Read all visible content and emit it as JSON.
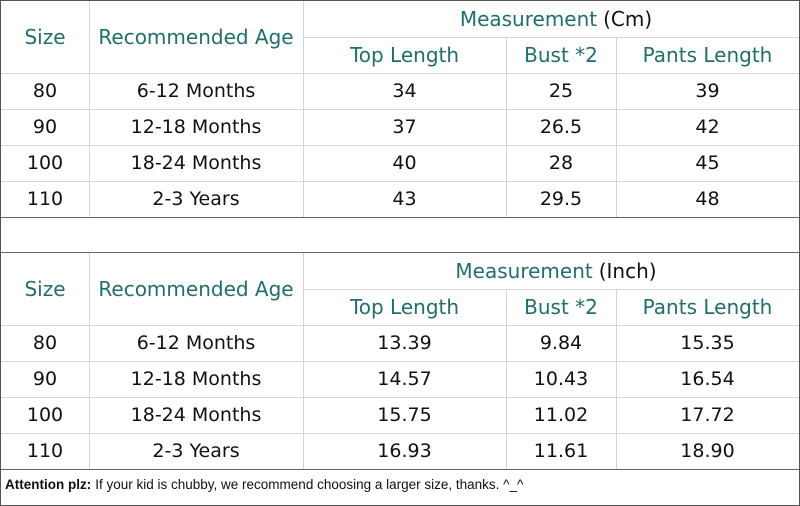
{
  "tables": [
    {
      "title": "Measurement",
      "unit": "(Cm)",
      "headers": [
        "Size",
        "Recommended Age",
        "Top Length",
        "Bust *2",
        "Pants Length"
      ],
      "rows": [
        [
          "80",
          "6-12 Months",
          "34",
          "25",
          "39"
        ],
        [
          "90",
          "12-18 Months",
          "37",
          "26.5",
          "42"
        ],
        [
          "100",
          "18-24 Months",
          "40",
          "28",
          "45"
        ],
        [
          "110",
          "2-3 Years",
          "43",
          "29.5",
          "48"
        ]
      ]
    },
    {
      "title": "Measurement",
      "unit": "(Inch)",
      "headers": [
        "Size",
        "Recommended Age",
        "Top Length",
        "Bust *2",
        "Pants Length"
      ],
      "rows": [
        [
          "80",
          "6-12 Months",
          "13.39",
          "9.84",
          "15.35"
        ],
        [
          "90",
          "12-18 Months",
          "14.57",
          "10.43",
          "16.54"
        ],
        [
          "100",
          "18-24 Months",
          "15.75",
          "11.02",
          "17.72"
        ],
        [
          "110",
          "2-3 Years",
          "16.93",
          "11.61",
          "18.90"
        ]
      ]
    }
  ],
  "note": {
    "label": "Attention plz:",
    "text": "If your kid is chubby, we recommend choosing a larger size, thanks. ^_^"
  }
}
